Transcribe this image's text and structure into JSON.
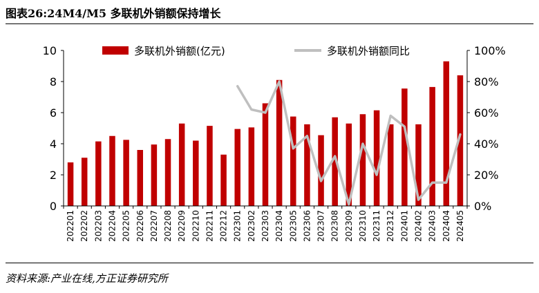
{
  "header": {
    "title": "图表26:24M4/M5 多联机外销额保持增长"
  },
  "footer": {
    "source": "资料来源:产业在线,方正证券研究所"
  },
  "colors": {
    "bar": "#c00000",
    "line": "#bfbfbf",
    "axis": "#000000"
  },
  "chart_data": {
    "type": "bar",
    "title": "",
    "categories": [
      "202201",
      "202202",
      "202203",
      "202204",
      "202205",
      "202206",
      "202207",
      "202208",
      "202209",
      "202210",
      "202211",
      "202212",
      "202301",
      "202302",
      "202303",
      "202304",
      "202305",
      "202306",
      "202307",
      "202308",
      "202309",
      "202310",
      "202311",
      "202312",
      "202401",
      "202402",
      "202403",
      "202404",
      "202405"
    ],
    "series": [
      {
        "name": "多联机外销额(亿元)",
        "type": "bar",
        "axis": "left",
        "values": [
          2.8,
          3.1,
          4.15,
          4.5,
          4.25,
          3.6,
          3.95,
          4.3,
          5.3,
          4.2,
          5.15,
          3.3,
          4.95,
          5.05,
          6.6,
          8.1,
          5.75,
          5.25,
          4.55,
          5.7,
          5.3,
          5.9,
          6.15,
          5.25,
          7.55,
          5.25,
          7.65,
          9.3,
          8.4
        ]
      },
      {
        "name": "多联机外销额同比",
        "type": "line",
        "axis": "right",
        "values": [
          null,
          null,
          null,
          null,
          null,
          null,
          null,
          null,
          null,
          null,
          null,
          null,
          77,
          62,
          60,
          80,
          37,
          45,
          16,
          32,
          1,
          40,
          20,
          58,
          51,
          4,
          15,
          15,
          46
        ]
      }
    ],
    "yaxis_left": {
      "min": 0,
      "max": 10,
      "step": 2,
      "ticks": [
        "0",
        "2",
        "4",
        "6",
        "8",
        "10"
      ]
    },
    "yaxis_right": {
      "min": 0,
      "max": 100,
      "step": 20,
      "ticks": [
        "0%",
        "20%",
        "40%",
        "60%",
        "80%",
        "100%"
      ]
    },
    "legend": {
      "position": "top"
    },
    "grid": false
  }
}
